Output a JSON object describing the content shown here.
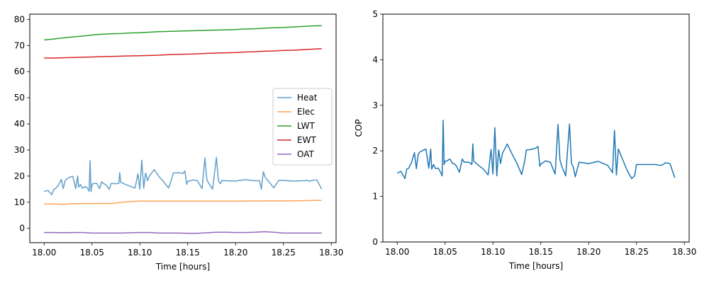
{
  "chart_data": [
    {
      "type": "line",
      "xlabel": "Time [hours]",
      "ylabel": "",
      "xlim": [
        17.985,
        18.305
      ],
      "ylim": [
        -5.5,
        82
      ],
      "xticks": [
        18.0,
        18.05,
        18.1,
        18.15,
        18.2,
        18.25,
        18.3
      ],
      "xtick_labels": [
        "18.00",
        "18.05",
        "18.10",
        "18.15",
        "18.20",
        "18.25",
        "18.30"
      ],
      "yticks": [
        0,
        10,
        20,
        30,
        40,
        50,
        60,
        70,
        80
      ],
      "ytick_labels": [
        "0",
        "10",
        "20",
        "30",
        "40",
        "50",
        "60",
        "70",
        "80"
      ],
      "legend": "center-right",
      "series": [
        {
          "name": "Heat",
          "color": "#1f77b4",
          "x": [
            18.0,
            18.004,
            18.008,
            18.01,
            18.012,
            18.015,
            18.018,
            18.02,
            18.022,
            18.024,
            18.026,
            18.03,
            18.033,
            18.035,
            18.036,
            18.038,
            18.04,
            18.043,
            18.045,
            18.047,
            18.048,
            18.049,
            18.05,
            18.052,
            18.055,
            18.058,
            18.06,
            18.062,
            18.065,
            18.068,
            18.07,
            18.075,
            18.078,
            18.079,
            18.08,
            18.085,
            18.09,
            18.095,
            18.098,
            18.1,
            18.102,
            18.104,
            18.106,
            18.108,
            18.11,
            18.115,
            18.12,
            18.125,
            18.13,
            18.133,
            18.135,
            18.14,
            18.145,
            18.147,
            18.149,
            18.15,
            18.155,
            18.16,
            18.165,
            18.168,
            18.17,
            18.172,
            18.176,
            18.18,
            18.182,
            18.184,
            18.186,
            18.19,
            18.2,
            18.21,
            18.22,
            18.225,
            18.227,
            18.229,
            18.231,
            18.24,
            18.245,
            18.248,
            18.25,
            18.26,
            18.27,
            18.275,
            18.278,
            18.28,
            18.285,
            18.29
          ],
          "y": [
            14.1,
            14.5,
            12.9,
            14.8,
            15.3,
            16.5,
            18.7,
            15.2,
            18.3,
            19.0,
            19.5,
            19.9,
            15.2,
            20.0,
            15.8,
            16.8,
            15.3,
            16.0,
            15.5,
            14.2,
            25.9,
            14.0,
            16.8,
            17.2,
            17.2,
            15.2,
            17.8,
            17.2,
            16.5,
            14.9,
            17.2,
            17.1,
            17.2,
            21.3,
            17.6,
            16.8,
            16.1,
            15.4,
            20.9,
            15.0,
            26.1,
            15.4,
            21.2,
            18.2,
            20.0,
            22.5,
            19.8,
            17.8,
            15.4,
            18.7,
            21.2,
            21.3,
            21.0,
            22.0,
            16.8,
            17.9,
            18.5,
            18.3,
            15.2,
            27.0,
            18.6,
            17.2,
            15.0,
            27.2,
            18.4,
            17.1,
            18.3,
            18.2,
            18.1,
            18.6,
            18.2,
            18.2,
            15.0,
            21.7,
            19.5,
            15.5,
            18.3,
            18.3,
            18.3,
            18.1,
            18.2,
            18.3,
            18.0,
            18.4,
            18.5,
            15.0
          ],
          "width": 1.5,
          "opacity": 0.7
        },
        {
          "name": "Elec",
          "color": "#ff7f0e",
          "x": [
            18.0,
            18.01,
            18.02,
            18.03,
            18.04,
            18.05,
            18.06,
            18.07,
            18.08,
            18.09,
            18.1,
            18.11,
            18.13,
            18.15,
            18.17,
            18.19,
            18.21,
            18.23,
            18.25,
            18.27,
            18.28,
            18.29
          ],
          "y": [
            9.3,
            9.3,
            9.2,
            9.4,
            9.5,
            9.5,
            9.5,
            9.5,
            9.9,
            10.2,
            10.4,
            10.4,
            10.4,
            10.4,
            10.4,
            10.4,
            10.4,
            10.5,
            10.5,
            10.6,
            10.7,
            10.7
          ],
          "width": 1.5,
          "opacity": 0.7
        },
        {
          "name": "LWT",
          "color": "#2ca02c",
          "x": [
            18.0,
            18.01,
            18.02,
            18.03,
            18.04,
            18.05,
            18.06,
            18.07,
            18.08,
            18.09,
            18.1,
            18.11,
            18.12,
            18.13,
            18.14,
            18.15,
            18.16,
            18.17,
            18.18,
            18.19,
            18.2,
            18.21,
            18.22,
            18.23,
            18.24,
            18.25,
            18.26,
            18.27,
            18.28,
            18.29
          ],
          "y": [
            72.1,
            72.5,
            72.9,
            73.3,
            73.6,
            74.0,
            74.3,
            74.5,
            74.6,
            74.8,
            74.9,
            75.1,
            75.3,
            75.4,
            75.5,
            75.6,
            75.7,
            75.8,
            75.9,
            76.0,
            76.1,
            76.3,
            76.4,
            76.6,
            76.8,
            76.9,
            77.1,
            77.3,
            77.5,
            77.6
          ],
          "width": 1.5,
          "opacity": 1
        },
        {
          "name": "EWT",
          "color": "#d62728",
          "x": [
            18.0,
            18.01,
            18.02,
            18.03,
            18.04,
            18.05,
            18.06,
            18.07,
            18.08,
            18.09,
            18.1,
            18.11,
            18.12,
            18.13,
            18.14,
            18.15,
            18.16,
            18.17,
            18.18,
            18.19,
            18.2,
            18.21,
            18.22,
            18.23,
            18.24,
            18.25,
            18.26,
            18.27,
            18.28,
            18.29
          ],
          "y": [
            65.2,
            65.2,
            65.3,
            65.4,
            65.5,
            65.6,
            65.7,
            65.8,
            65.9,
            66.0,
            66.1,
            66.2,
            66.3,
            66.5,
            66.6,
            66.7,
            66.8,
            67.0,
            67.1,
            67.2,
            67.3,
            67.5,
            67.6,
            67.8,
            67.9,
            68.1,
            68.2,
            68.4,
            68.6,
            68.8
          ],
          "width": 1.5,
          "opacity": 1
        },
        {
          "name": "OAT",
          "color": "#9467bd",
          "x": [
            18.0,
            18.01,
            18.02,
            18.03,
            18.04,
            18.05,
            18.06,
            18.07,
            18.08,
            18.09,
            18.1,
            18.11,
            18.12,
            18.13,
            18.14,
            18.15,
            18.16,
            18.17,
            18.18,
            18.19,
            18.2,
            18.21,
            18.22,
            18.23,
            18.24,
            18.25,
            18.26,
            18.27,
            18.28,
            18.29
          ],
          "y": [
            -1.6,
            -1.6,
            -1.7,
            -1.6,
            -1.6,
            -1.8,
            -1.8,
            -1.8,
            -1.8,
            -1.7,
            -1.6,
            -1.6,
            -1.8,
            -1.8,
            -1.8,
            -1.9,
            -1.9,
            -1.7,
            -1.5,
            -1.5,
            -1.6,
            -1.6,
            -1.5,
            -1.3,
            -1.5,
            -1.8,
            -1.8,
            -1.8,
            -1.8,
            -1.8
          ],
          "width": 1.5,
          "opacity": 1
        }
      ]
    },
    {
      "type": "line",
      "xlabel": "Time [hours]",
      "ylabel": "COP",
      "xlim": [
        17.985,
        18.305
      ],
      "ylim": [
        0,
        5
      ],
      "xticks": [
        18.0,
        18.05,
        18.1,
        18.15,
        18.2,
        18.25,
        18.3
      ],
      "xtick_labels": [
        "18.00",
        "18.05",
        "18.10",
        "18.15",
        "18.20",
        "18.25",
        "18.30"
      ],
      "yticks": [
        0,
        1,
        2,
        3,
        4,
        5
      ],
      "ytick_labels": [
        "0",
        "1",
        "2",
        "3",
        "4",
        "5"
      ],
      "series": [
        {
          "color": "#1f77b4",
          "x": [
            18.0,
            18.004,
            18.008,
            18.01,
            18.012,
            18.015,
            18.018,
            18.02,
            18.022,
            18.024,
            18.026,
            18.03,
            18.033,
            18.035,
            18.036,
            18.038,
            18.04,
            18.043,
            18.045,
            18.047,
            18.048,
            18.049,
            18.05,
            18.052,
            18.055,
            18.058,
            18.06,
            18.062,
            18.065,
            18.068,
            18.07,
            18.075,
            18.078,
            18.079,
            18.08,
            18.085,
            18.09,
            18.095,
            18.098,
            18.1,
            18.102,
            18.104,
            18.106,
            18.108,
            18.11,
            18.115,
            18.12,
            18.125,
            18.13,
            18.133,
            18.135,
            18.14,
            18.145,
            18.147,
            18.149,
            18.15,
            18.155,
            18.16,
            18.165,
            18.168,
            18.17,
            18.172,
            18.176,
            18.18,
            18.182,
            18.184,
            18.186,
            18.19,
            18.2,
            18.21,
            18.22,
            18.225,
            18.227,
            18.229,
            18.231,
            18.24,
            18.245,
            18.248,
            18.25,
            18.26,
            18.27,
            18.275,
            18.278,
            18.28,
            18.285,
            18.29
          ],
          "y": [
            1.51,
            1.55,
            1.39,
            1.6,
            1.62,
            1.75,
            1.96,
            1.61,
            1.93,
            1.98,
            2.0,
            2.04,
            1.62,
            2.04,
            1.6,
            1.7,
            1.61,
            1.62,
            1.54,
            1.45,
            2.67,
            1.7,
            1.77,
            1.78,
            1.82,
            1.72,
            1.71,
            1.66,
            1.53,
            1.82,
            1.75,
            1.75,
            1.7,
            2.15,
            1.77,
            1.68,
            1.6,
            1.47,
            2.03,
            1.49,
            2.51,
            1.45,
            2.02,
            1.72,
            1.95,
            2.15,
            1.93,
            1.73,
            1.48,
            1.75,
            2.02,
            2.03,
            2.06,
            2.1,
            1.66,
            1.71,
            1.78,
            1.75,
            1.49,
            2.58,
            1.8,
            1.66,
            1.45,
            2.59,
            1.73,
            1.64,
            1.43,
            1.75,
            1.72,
            1.77,
            1.68,
            1.52,
            2.45,
            1.47,
            2.04,
            1.58,
            1.39,
            1.45,
            1.7,
            1.7,
            1.7,
            1.68,
            1.7,
            1.74,
            1.72,
            1.41
          ],
          "width": 1.5,
          "opacity": 1
        }
      ]
    }
  ]
}
